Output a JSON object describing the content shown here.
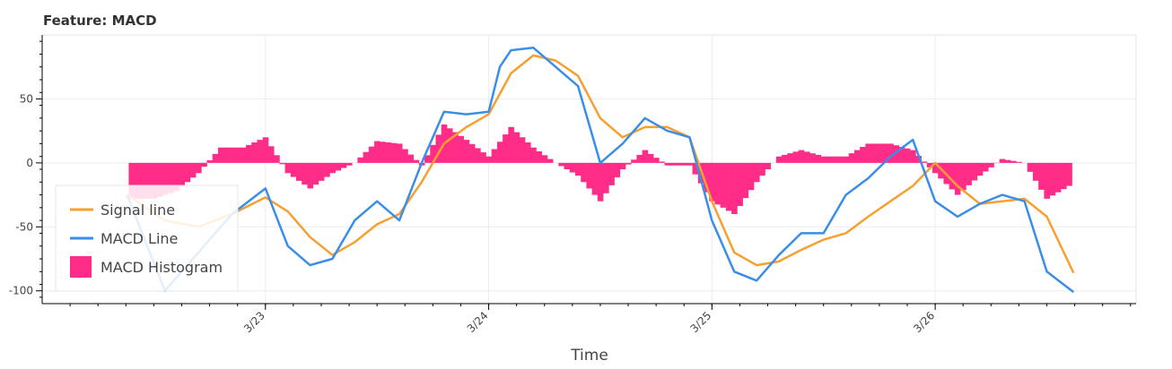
{
  "title": "Feature: MACD",
  "chart_data": {
    "type": "line",
    "xlabel": "Time",
    "ylabel": "",
    "grid": true,
    "legend_position": "bottom-left",
    "x_ticks": [
      "3/23",
      "3/24",
      "3/25",
      "3/26"
    ],
    "x_tick_values": [
      23,
      24,
      25,
      26
    ],
    "xlim": [
      22.0,
      26.9
    ],
    "y_ticks": [
      50,
      0,
      -50,
      -100
    ],
    "ylim": [
      -110,
      100
    ],
    "colors": {
      "signal": "#f5a031",
      "macd": "#3b8ee8",
      "hist": "#ff2d87"
    },
    "signal_line": {
      "name": "Signal line",
      "x": [
        22.38,
        22.55,
        22.7,
        22.85,
        23.0,
        23.1,
        23.2,
        23.3,
        23.4,
        23.5,
        23.6,
        23.7,
        23.8,
        23.9,
        24.0,
        24.1,
        24.2,
        24.3,
        24.4,
        24.5,
        24.6,
        24.7,
        24.8,
        24.9,
        25.0,
        25.1,
        25.2,
        25.3,
        25.4,
        25.5,
        25.6,
        25.7,
        25.8,
        25.9,
        26.0,
        26.1,
        26.2,
        26.3,
        26.4,
        26.5,
        26.62
      ],
      "y": [
        -25,
        -45,
        -50,
        -40,
        -27,
        -38,
        -58,
        -72,
        -62,
        -48,
        -40,
        -15,
        15,
        28,
        38,
        70,
        84,
        80,
        68,
        35,
        20,
        28,
        28,
        20,
        -30,
        -70,
        -80,
        -77,
        -68,
        -60,
        -55,
        -42,
        -30,
        -18,
        0,
        -18,
        -32,
        -30,
        -28,
        -42,
        -86
      ]
    },
    "macd_line": {
      "name": "MACD Line",
      "x": [
        22.38,
        22.55,
        22.7,
        22.85,
        23.0,
        23.1,
        23.2,
        23.3,
        23.4,
        23.5,
        23.6,
        23.7,
        23.8,
        23.9,
        24.0,
        24.05,
        24.1,
        24.2,
        24.3,
        24.4,
        24.5,
        24.6,
        24.7,
        24.8,
        24.9,
        25.0,
        25.1,
        25.2,
        25.3,
        25.4,
        25.5,
        25.6,
        25.7,
        25.8,
        25.9,
        26.0,
        26.1,
        26.2,
        26.3,
        26.4,
        26.5,
        26.62
      ],
      "y": [
        -25,
        -100,
        -70,
        -40,
        -20,
        -65,
        -80,
        -75,
        -45,
        -30,
        -45,
        0,
        40,
        38,
        40,
        75,
        88,
        90,
        75,
        60,
        0,
        15,
        35,
        25,
        20,
        -45,
        -85,
        -92,
        -72,
        -55,
        -55,
        -25,
        -12,
        5,
        18,
        -30,
        -42,
        -32,
        -25,
        -30,
        -85,
        -101
      ]
    },
    "histogram": {
      "name": "MACD Histogram",
      "x": [
        22.4,
        22.5,
        22.6,
        22.7,
        22.8,
        22.9,
        23.0,
        23.1,
        23.2,
        23.3,
        23.4,
        23.5,
        23.6,
        23.7,
        23.8,
        23.9,
        24.0,
        24.1,
        24.2,
        24.3,
        24.4,
        24.5,
        24.6,
        24.7,
        24.8,
        24.9,
        25.0,
        25.1,
        25.2,
        25.3,
        25.4,
        25.5,
        25.6,
        25.7,
        25.8,
        25.9,
        26.0,
        26.1,
        26.2,
        26.3,
        26.4,
        26.5,
        26.6
      ],
      "y": [
        -28,
        -28,
        -22,
        -8,
        12,
        12,
        20,
        -8,
        -20,
        -8,
        0,
        17,
        15,
        -2,
        30,
        18,
        5,
        28,
        12,
        0,
        -10,
        -30,
        -5,
        10,
        -2,
        -2,
        -30,
        -40,
        -15,
        5,
        10,
        5,
        5,
        15,
        15,
        10,
        -8,
        -25,
        -10,
        3,
        0,
        -28,
        -18
      ]
    }
  }
}
